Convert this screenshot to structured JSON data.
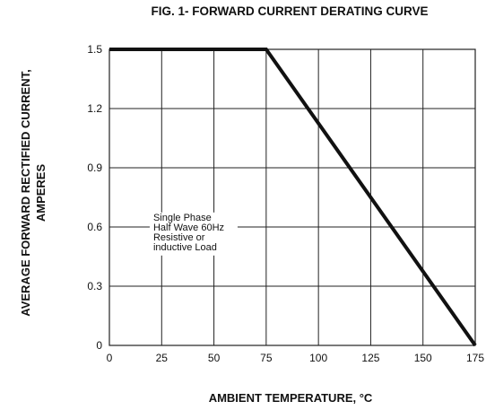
{
  "chart_data": {
    "type": "line",
    "title": "FIG. 1- FORWARD CURRENT DERATING CURVE",
    "xlabel": "AMBIENT TEMPERATURE, °C",
    "ylabel_lines": [
      "AVERAGE FORWARD RECTIFIED CURRENT,",
      "AMPERES"
    ],
    "x_ticks": [
      0,
      25,
      50,
      75,
      100,
      125,
      150,
      175
    ],
    "y_ticks": [
      0,
      0.3,
      0.6,
      0.9,
      1.2,
      1.5
    ],
    "y_tick_labels": [
      "0",
      "0.3",
      "0.6",
      "0.9",
      "1.2",
      "1.5"
    ],
    "xlim": [
      0,
      175
    ],
    "ylim": [
      0,
      1.5
    ],
    "grid": true,
    "series": [
      {
        "x": [
          0,
          75,
          175
        ],
        "y": [
          1.5,
          1.5,
          0
        ]
      }
    ],
    "annotation_lines": [
      "Single Phase",
      "Half Wave 60Hz",
      "Resistive or",
      "inductive Load"
    ],
    "line_color": "#111111",
    "grid_color": "#222222"
  }
}
